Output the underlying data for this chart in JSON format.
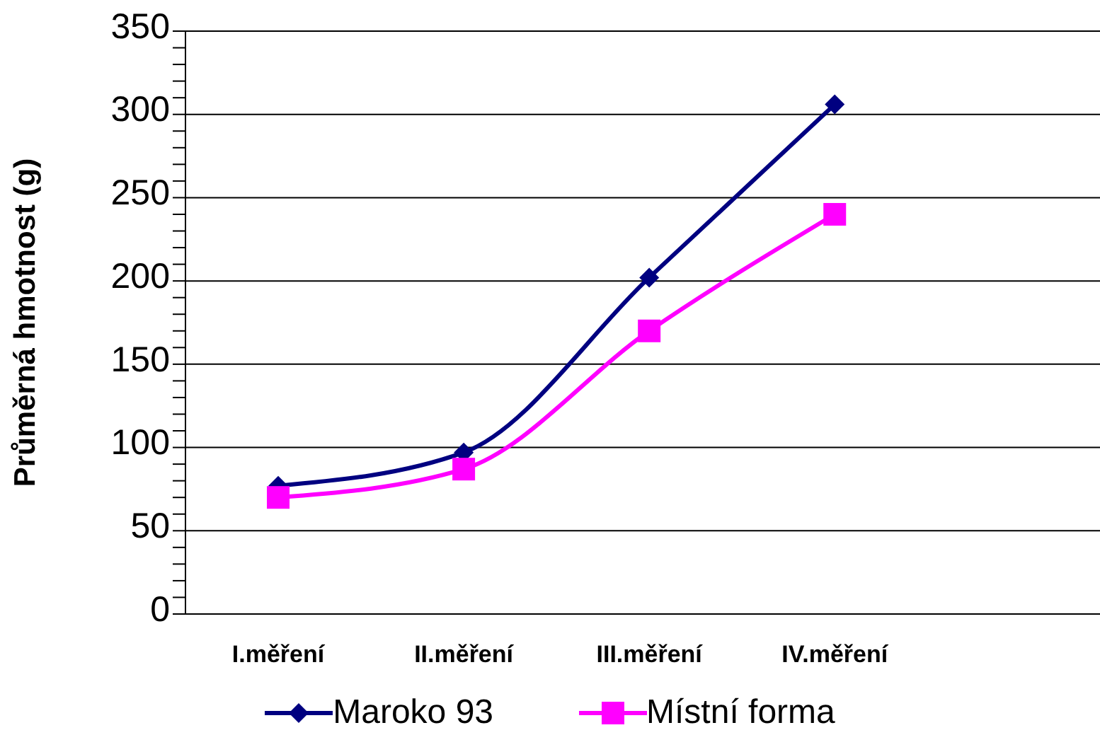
{
  "chart_data": {
    "type": "line",
    "ylabel": "Průměrná hmotnost (g)",
    "categories": [
      "I.měření",
      "II.měření",
      "III.měření",
      "IV.měření"
    ],
    "series": [
      {
        "name": "Maroko 93",
        "color": "#000080",
        "values": [
          77,
          97,
          202,
          306
        ],
        "marker": "diamond"
      },
      {
        "name": "Místní forma",
        "color": "#ff00ff",
        "values": [
          70,
          87,
          170,
          240
        ],
        "marker": "square"
      }
    ],
    "ylim": [
      0,
      350
    ],
    "yticks": [
      0,
      {
        "value": 10,
        "label": null
      },
      {
        "value": 20,
        "label": null
      },
      {
        "value": 30,
        "label": null
      },
      {
        "value": 40,
        "label": null
      },
      50,
      {
        "value": 60,
        "label": null
      },
      {
        "value": 70,
        "label": null
      },
      {
        "value": 80,
        "label": null
      },
      {
        "value": 90,
        "label": null
      },
      100,
      {
        "value": 110,
        "label": null
      },
      {
        "value": 120,
        "label": null
      },
      {
        "value": 130,
        "label": null
      },
      {
        "value": 140,
        "label": null
      },
      150,
      {
        "value": 160,
        "label": null
      },
      {
        "value": 170,
        "label": null
      },
      {
        "value": 180,
        "label": null
      },
      {
        "value": 190,
        "label": null
      },
      200,
      {
        "value": 210,
        "label": null
      },
      {
        "value": 220,
        "label": null
      },
      {
        "value": 230,
        "label": null
      },
      {
        "value": 240,
        "label": null
      },
      250,
      {
        "value": 260,
        "label": null
      },
      {
        "value": 270,
        "label": null
      },
      {
        "value": 280,
        "label": null
      },
      {
        "value": 290,
        "label": null
      },
      300,
      {
        "value": 310,
        "label": null
      },
      {
        "value": 320,
        "label": null
      },
      {
        "value": 330,
        "label": null
      },
      {
        "value": 340,
        "label": null
      },
      350
    ],
    "grid": "y",
    "legend": "bottom",
    "line_style": "solid"
  }
}
